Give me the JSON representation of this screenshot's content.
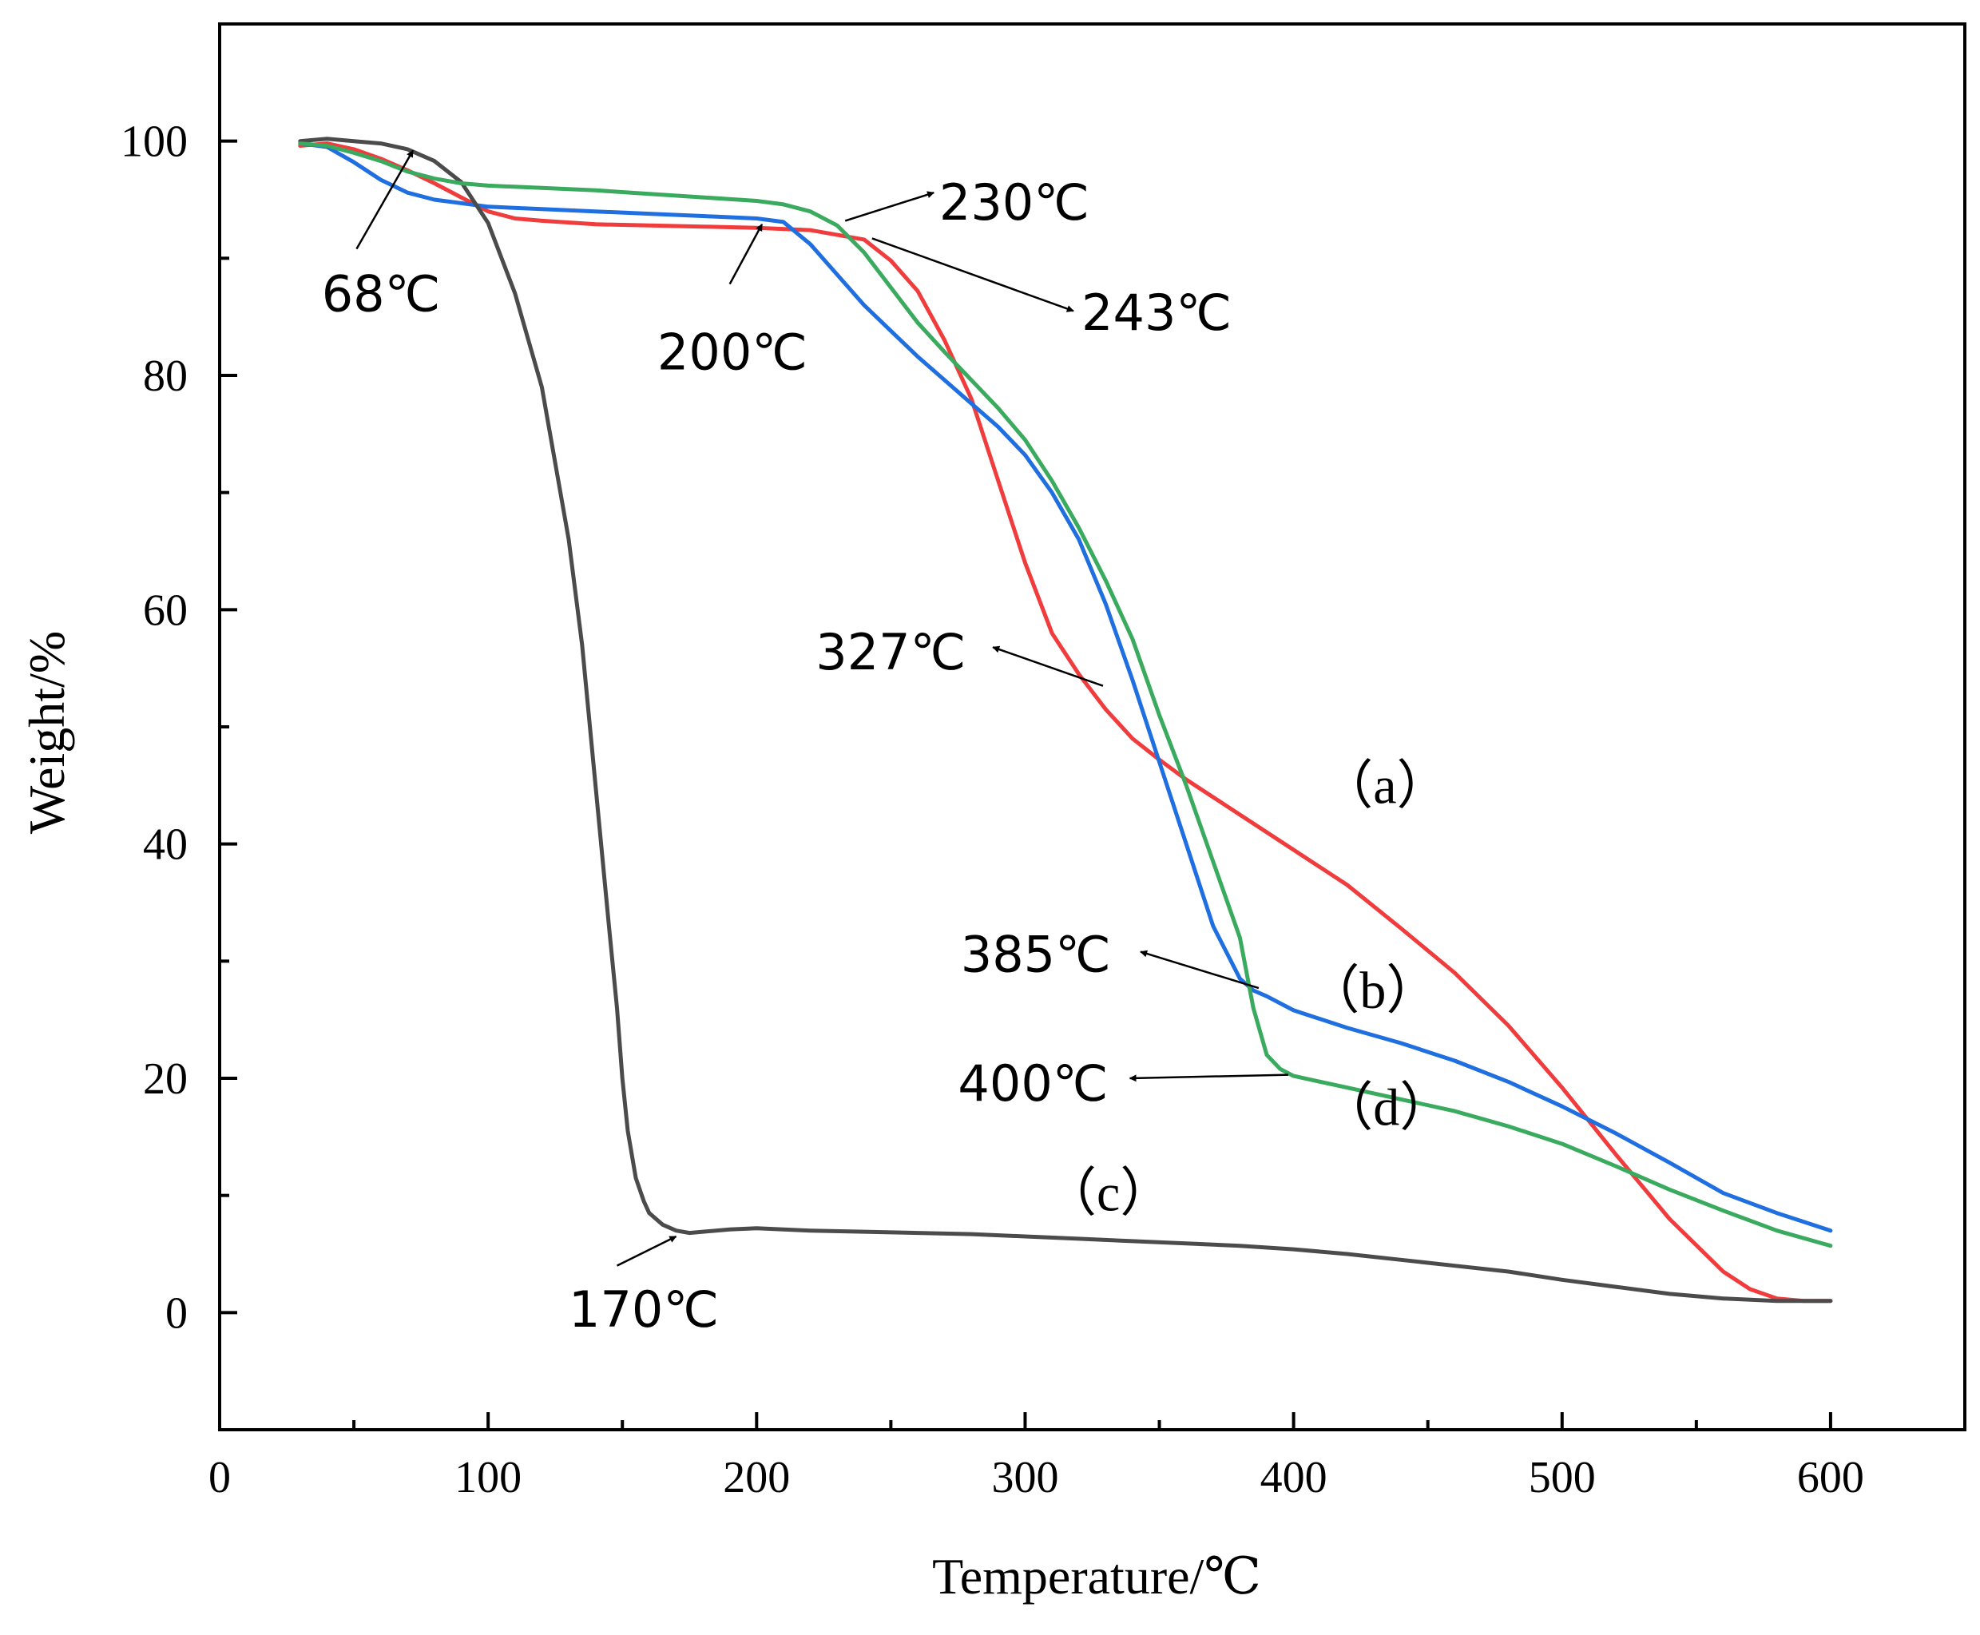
{
  "chart_data": {
    "type": "line",
    "xlabel": "Temperature/℃",
    "ylabel": "Weight/%",
    "xlim": [
      0,
      650
    ],
    "ylim": [
      -10,
      110
    ],
    "xticks": [
      0,
      100,
      200,
      300,
      400,
      500,
      600
    ],
    "yticks": [
      0,
      20,
      40,
      60,
      80,
      100
    ],
    "grid": false,
    "series": [
      {
        "name": "(a)",
        "label": "（a）",
        "color": "#f03c3c",
        "label_at": [
          410,
          43.5
        ],
        "x": [
          30,
          40,
          50,
          60,
          70,
          80,
          90,
          100,
          110,
          120,
          140,
          160,
          180,
          200,
          220,
          240,
          250,
          260,
          270,
          280,
          290,
          300,
          305,
          310,
          320,
          330,
          340,
          350,
          360,
          370,
          380,
          390,
          400,
          420,
          440,
          460,
          480,
          500,
          520,
          540,
          560,
          570,
          580,
          590,
          600
        ],
        "y": [
          99.6,
          99.8,
          99.3,
          98.5,
          97.5,
          96.4,
          95.2,
          94.0,
          93.4,
          93.2,
          92.9,
          92.8,
          92.7,
          92.6,
          92.4,
          91.6,
          89.8,
          87.2,
          83.0,
          78.0,
          71.0,
          64.0,
          61.0,
          58.0,
          54.5,
          51.5,
          49.0,
          47.2,
          45.5,
          44.0,
          42.5,
          41.0,
          39.5,
          36.5,
          32.8,
          29.0,
          24.5,
          19.2,
          13.5,
          8.0,
          3.5,
          2.0,
          1.2,
          1.0,
          1.0
        ]
      },
      {
        "name": "(b)",
        "label": "（b）",
        "color": "#1f6fe0",
        "label_at": [
          405,
          26
        ],
        "x": [
          30,
          40,
          50,
          60,
          70,
          80,
          90,
          100,
          120,
          140,
          160,
          180,
          200,
          210,
          220,
          230,
          240,
          250,
          260,
          270,
          280,
          290,
          300,
          310,
          320,
          330,
          340,
          350,
          360,
          370,
          380,
          385,
          390,
          400,
          420,
          440,
          460,
          480,
          500,
          520,
          540,
          560,
          580,
          600
        ],
        "y": [
          99.8,
          99.5,
          98.2,
          96.7,
          95.6,
          95.0,
          94.7,
          94.4,
          94.2,
          94.0,
          93.8,
          93.6,
          93.4,
          93.1,
          91.2,
          88.6,
          86.0,
          83.8,
          81.6,
          79.6,
          77.6,
          75.6,
          73.2,
          70.0,
          66.0,
          60.5,
          54.0,
          47.0,
          40.0,
          33.0,
          28.5,
          27.5,
          27.0,
          25.8,
          24.3,
          23.0,
          21.5,
          19.7,
          17.6,
          15.3,
          12.8,
          10.2,
          8.5,
          7.0
        ]
      },
      {
        "name": "(c)",
        "label": "（c）",
        "color": "#4b4b4b",
        "label_at": [
          307,
          8.7
        ],
        "x": [
          30,
          40,
          50,
          60,
          70,
          80,
          90,
          100,
          110,
          120,
          130,
          135,
          140,
          145,
          148,
          150,
          152,
          155,
          158,
          160,
          165,
          170,
          175,
          180,
          190,
          200,
          220,
          240,
          260,
          280,
          300,
          320,
          340,
          360,
          380,
          400,
          420,
          440,
          460,
          480,
          500,
          520,
          540,
          560,
          580,
          600
        ],
        "y": [
          100.0,
          100.2,
          100.0,
          99.8,
          99.3,
          98.3,
          96.5,
          93.0,
          87.0,
          79.0,
          66.0,
          57.0,
          45.0,
          33.0,
          26.0,
          20.0,
          15.5,
          11.5,
          9.5,
          8.5,
          7.5,
          7.0,
          6.8,
          6.9,
          7.1,
          7.2,
          7.0,
          6.9,
          6.8,
          6.7,
          6.5,
          6.3,
          6.1,
          5.9,
          5.7,
          5.4,
          5.0,
          4.5,
          4.0,
          3.5,
          2.8,
          2.2,
          1.6,
          1.2,
          1.0,
          1.0
        ]
      },
      {
        "name": "(d)",
        "label": "（d）",
        "color": "#3aaa5e",
        "label_at": [
          410,
          16
        ],
        "x": [
          30,
          40,
          50,
          60,
          70,
          80,
          90,
          100,
          120,
          140,
          160,
          180,
          200,
          210,
          220,
          230,
          240,
          250,
          260,
          270,
          280,
          290,
          300,
          310,
          320,
          330,
          340,
          350,
          360,
          370,
          380,
          385,
          390,
          395,
          400,
          420,
          440,
          460,
          480,
          500,
          520,
          540,
          560,
          580,
          600
        ],
        "y": [
          99.8,
          99.6,
          99.0,
          98.3,
          97.4,
          96.8,
          96.4,
          96.2,
          96.0,
          95.8,
          95.5,
          95.2,
          94.9,
          94.6,
          94.0,
          92.8,
          90.5,
          87.5,
          84.5,
          82.0,
          79.6,
          77.2,
          74.5,
          71.0,
          67.0,
          62.5,
          57.5,
          51.0,
          45.0,
          38.5,
          32.0,
          26.0,
          22.0,
          20.8,
          20.2,
          19.2,
          18.2,
          17.2,
          15.9,
          14.4,
          12.5,
          10.5,
          8.7,
          7.0,
          5.7
        ]
      }
    ],
    "annotations": [
      {
        "text": "68℃",
        "tail": [
          51,
          90.8
        ],
        "head": [
          72,
          99.2
        ],
        "label_at": [
          38,
          85.5
        ]
      },
      {
        "text": "200℃",
        "tail": [
          190,
          87.8
        ],
        "head": [
          202,
          92.9
        ],
        "label_at": [
          163,
          80.5
        ]
      },
      {
        "text": "230℃",
        "tail": [
          233,
          93.2
        ],
        "head": [
          266,
          95.6
        ],
        "label_at": [
          268,
          93.3
        ]
      },
      {
        "text": "243℃",
        "tail": [
          243,
          91.7
        ],
        "head": [
          318,
          85.5
        ],
        "label_at": [
          321,
          83.9
        ]
      },
      {
        "text": "327℃",
        "tail": [
          329,
          53.5
        ],
        "head": [
          288,
          56.8
        ],
        "label_at": [
          222,
          54.9
        ]
      },
      {
        "text": "385℃",
        "tail": [
          387,
          27.7
        ],
        "head": [
          343,
          30.8
        ],
        "label_at": [
          276,
          29.1
        ]
      },
      {
        "text": "400℃",
        "tail": [
          398,
          20.3
        ],
        "head": [
          339,
          20.0
        ],
        "label_at": [
          275,
          18.1
        ]
      },
      {
        "text": "170℃",
        "tail": [
          148,
          4.0
        ],
        "head": [
          170,
          6.5
        ],
        "label_at": [
          130,
          -1.2
        ]
      }
    ]
  }
}
